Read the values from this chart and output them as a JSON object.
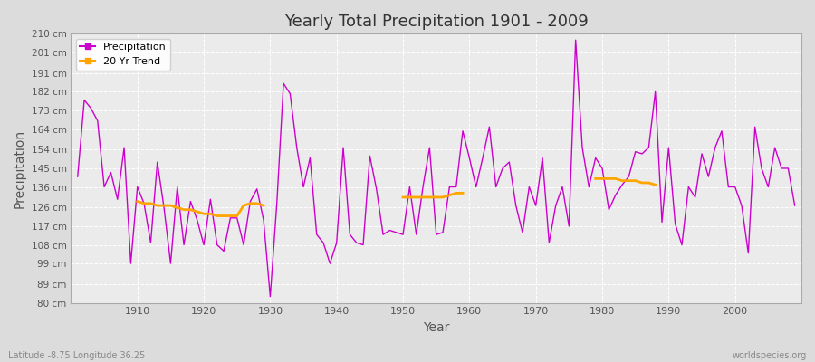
{
  "title": "Yearly Total Precipitation 1901 - 2009",
  "xlabel": "Year",
  "ylabel": "Precipitation",
  "bottom_left_label": "Latitude -8.75 Longitude 36.25",
  "bottom_right_label": "worldspecies.org",
  "line_color": "#CC00CC",
  "trend_color": "#FFA500",
  "background_color": "#DCDCDC",
  "plot_bg_color": "#EBEBEB",
  "grid_color": "#FFFFFF",
  "ylim": [
    80,
    210
  ],
  "ytick_labels": [
    "80 cm",
    "89 cm",
    "99 cm",
    "108 cm",
    "117 cm",
    "126 cm",
    "136 cm",
    "145 cm",
    "154 cm",
    "164 cm",
    "173 cm",
    "182 cm",
    "191 cm",
    "201 cm",
    "210 cm"
  ],
  "ytick_values": [
    80,
    89,
    99,
    108,
    117,
    126,
    136,
    145,
    154,
    164,
    173,
    182,
    191,
    201,
    210
  ],
  "years": [
    1901,
    1902,
    1903,
    1904,
    1905,
    1906,
    1907,
    1908,
    1909,
    1910,
    1911,
    1912,
    1913,
    1914,
    1915,
    1916,
    1917,
    1918,
    1919,
    1920,
    1921,
    1922,
    1923,
    1924,
    1925,
    1926,
    1927,
    1928,
    1929,
    1930,
    1931,
    1932,
    1933,
    1934,
    1935,
    1936,
    1937,
    1938,
    1939,
    1940,
    1941,
    1942,
    1943,
    1944,
    1945,
    1946,
    1947,
    1948,
    1949,
    1950,
    1951,
    1952,
    1953,
    1954,
    1955,
    1956,
    1957,
    1958,
    1959,
    1960,
    1961,
    1962,
    1963,
    1964,
    1965,
    1966,
    1967,
    1968,
    1969,
    1970,
    1971,
    1972,
    1973,
    1974,
    1975,
    1976,
    1977,
    1978,
    1979,
    1980,
    1981,
    1982,
    1983,
    1984,
    1985,
    1986,
    1987,
    1988,
    1989,
    1990,
    1991,
    1992,
    1993,
    1994,
    1995,
    1996,
    1997,
    1998,
    1999,
    2000,
    2001,
    2002,
    2003,
    2004,
    2005,
    2006,
    2007,
    2008,
    2009
  ],
  "precipitation": [
    141,
    178,
    174,
    168,
    136,
    143,
    130,
    155,
    99,
    136,
    128,
    109,
    148,
    126,
    99,
    136,
    108,
    129,
    120,
    108,
    130,
    108,
    105,
    121,
    121,
    108,
    129,
    135,
    120,
    83,
    128,
    186,
    181,
    155,
    136,
    150,
    113,
    109,
    99,
    109,
    155,
    113,
    109,
    108,
    151,
    135,
    113,
    115,
    114,
    113,
    136,
    113,
    136,
    155,
    113,
    114,
    136,
    136,
    163,
    150,
    136,
    150,
    165,
    136,
    145,
    148,
    127,
    114,
    136,
    127,
    150,
    109,
    127,
    136,
    117,
    207,
    155,
    136,
    150,
    145,
    125,
    132,
    137,
    141,
    153,
    152,
    155,
    182,
    119,
    155,
    118,
    108,
    136,
    131,
    152,
    141,
    155,
    163,
    136,
    136,
    127,
    104,
    165,
    145,
    136,
    155,
    145,
    145,
    127
  ],
  "trend_segment1_years": [
    1910,
    1911,
    1912,
    1913,
    1914,
    1915,
    1916,
    1917,
    1918,
    1919,
    1920,
    1921,
    1922,
    1923,
    1924,
    1925,
    1926,
    1927,
    1928,
    1929
  ],
  "trend_segment1_vals": [
    129,
    128,
    128,
    127,
    127,
    127,
    126,
    125,
    125,
    124,
    123,
    123,
    122,
    122,
    122,
    122,
    127,
    128,
    128,
    127
  ],
  "trend_segment2_years": [
    1950,
    1951,
    1952,
    1953,
    1954,
    1955,
    1956,
    1957,
    1958,
    1959
  ],
  "trend_segment2_vals": [
    131,
    131,
    131,
    131,
    131,
    131,
    131,
    132,
    133,
    133
  ],
  "trend_segment3_years": [
    1979,
    1980,
    1981,
    1982,
    1983,
    1984,
    1985,
    1986,
    1987,
    1988
  ],
  "trend_segment3_vals": [
    140,
    140,
    140,
    140,
    139,
    139,
    139,
    138,
    138,
    137
  ]
}
